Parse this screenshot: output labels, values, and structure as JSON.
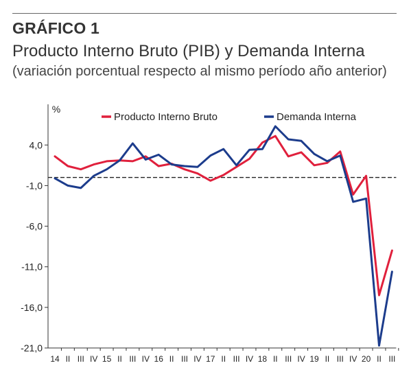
{
  "header": {
    "label": "GRÁFICO 1",
    "title": "Producto Interno Bruto (PIB) y Demanda Interna",
    "subtitle": "(variación porcentual respecto al mismo período año anterior)"
  },
  "chart_data": {
    "type": "line",
    "ylabel": "%",
    "ylim": [
      -21,
      9
    ],
    "y_ticks": [
      4.0,
      -1.0,
      -6.0,
      -11.0,
      -16.0,
      -21.0
    ],
    "y_tick_labels": [
      "4,0",
      "-1,0",
      "-6,0",
      "-11,0",
      "-16,0",
      "-21,0"
    ],
    "zero_line": true,
    "grid": false,
    "legend_position": "top",
    "x_tick_labels": [
      "14",
      "II",
      "III",
      "IV",
      "15",
      "II",
      "III",
      "IV",
      "16",
      "II",
      "III",
      "IV",
      "17",
      "II",
      "III",
      "IV",
      "18",
      "II",
      "III",
      "IV",
      "19",
      "II",
      "III",
      "IV",
      "20",
      "II",
      "III"
    ],
    "series": [
      {
        "name": "Producto Interno Bruto",
        "color": "#e0203c",
        "values": [
          2.6,
          1.4,
          1.0,
          1.6,
          2.0,
          2.1,
          2.0,
          2.6,
          1.4,
          1.7,
          1.0,
          0.5,
          -0.4,
          0.3,
          1.3,
          2.3,
          4.3,
          5.1,
          2.6,
          3.1,
          1.5,
          1.8,
          3.2,
          -2.1,
          0.2,
          -14.5,
          -9.0
        ]
      },
      {
        "name": "Demanda Interna",
        "color": "#1c3c8c",
        "values": [
          -0.1,
          -1.0,
          -1.3,
          0.2,
          1.0,
          2.1,
          4.2,
          2.2,
          2.8,
          1.6,
          1.4,
          1.3,
          2.7,
          3.5,
          1.5,
          3.4,
          3.5,
          6.3,
          4.7,
          4.5,
          2.9,
          2.0,
          2.7,
          -3.0,
          -2.6,
          -20.7,
          -11.6
        ]
      }
    ]
  }
}
